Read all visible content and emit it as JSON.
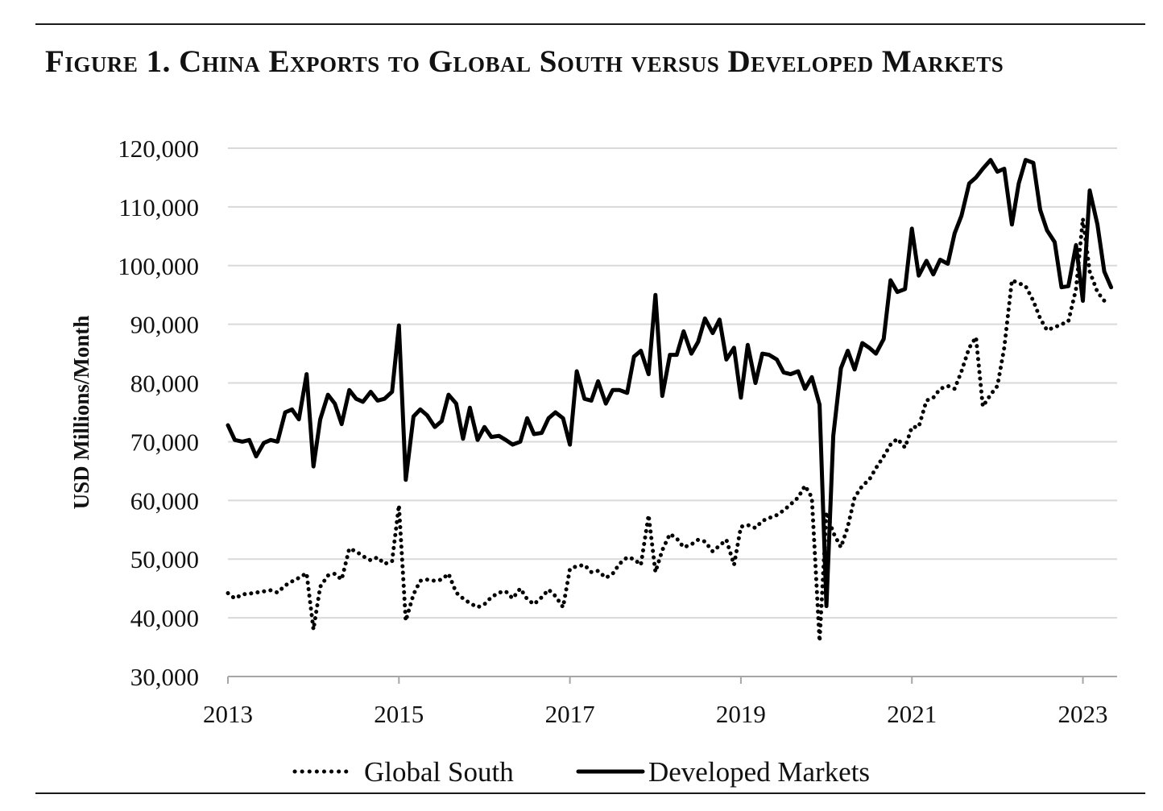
{
  "figure_title": "Figure 1. China Exports to Global South versus Developed Markets",
  "colors": {
    "line": "#000000",
    "grid": "#d9d9d9",
    "text": "#111111"
  },
  "chart_data": {
    "type": "line",
    "title": "Figure 1. China Exports to Global South versus Developed Markets",
    "xlabel": "",
    "ylabel": "USD Millions/Month",
    "xlim": [
      2013,
      2023.4
    ],
    "ylim": [
      30000,
      120000
    ],
    "yticks": [
      30000,
      40000,
      50000,
      60000,
      70000,
      80000,
      90000,
      100000,
      110000,
      120000
    ],
    "ytick_labels": [
      "30,000",
      "40,000",
      "50,000",
      "60,000",
      "70,000",
      "80,000",
      "90,000",
      "100,000",
      "110,000",
      "120,000"
    ],
    "xticks": [
      2013,
      2015,
      2017,
      2019,
      2021,
      2023
    ],
    "xtick_labels": [
      "2013",
      "2015",
      "2017",
      "2019",
      "2021",
      "2023"
    ],
    "grid": true,
    "legend_position": "bottom",
    "series": [
      {
        "name": "Global South",
        "style": "dotted",
        "points": [
          [
            2013.0,
            44200
          ],
          [
            2013.08,
            43300
          ],
          [
            2013.17,
            44000
          ],
          [
            2013.25,
            44100
          ],
          [
            2013.33,
            44300
          ],
          [
            2013.42,
            44500
          ],
          [
            2013.5,
            44700
          ],
          [
            2013.58,
            44300
          ],
          [
            2013.67,
            45500
          ],
          [
            2013.75,
            46200
          ],
          [
            2013.83,
            46800
          ],
          [
            2013.92,
            47600
          ],
          [
            2014.0,
            38000
          ],
          [
            2014.08,
            45300
          ],
          [
            2014.17,
            47200
          ],
          [
            2014.25,
            47500
          ],
          [
            2014.33,
            46500
          ],
          [
            2014.42,
            51800
          ],
          [
            2014.5,
            51300
          ],
          [
            2014.58,
            50500
          ],
          [
            2014.67,
            49800
          ],
          [
            2014.75,
            50300
          ],
          [
            2014.83,
            49200
          ],
          [
            2014.92,
            49600
          ],
          [
            2015.0,
            59200
          ],
          [
            2015.08,
            39500
          ],
          [
            2015.17,
            44000
          ],
          [
            2015.25,
            46300
          ],
          [
            2015.33,
            46500
          ],
          [
            2015.42,
            46300
          ],
          [
            2015.5,
            46500
          ],
          [
            2015.58,
            47500
          ],
          [
            2015.67,
            44300
          ],
          [
            2015.75,
            43300
          ],
          [
            2015.83,
            42500
          ],
          [
            2015.92,
            41800
          ],
          [
            2016.0,
            42300
          ],
          [
            2016.08,
            43500
          ],
          [
            2016.17,
            44300
          ],
          [
            2016.25,
            44500
          ],
          [
            2016.33,
            43300
          ],
          [
            2016.42,
            45000
          ],
          [
            2016.5,
            43200
          ],
          [
            2016.58,
            42300
          ],
          [
            2016.67,
            43500
          ],
          [
            2016.75,
            44800
          ],
          [
            2016.83,
            43700
          ],
          [
            2016.92,
            41800
          ],
          [
            2017.0,
            48300
          ],
          [
            2017.08,
            48800
          ],
          [
            2017.17,
            49000
          ],
          [
            2017.25,
            47800
          ],
          [
            2017.33,
            48000
          ],
          [
            2017.42,
            46800
          ],
          [
            2017.5,
            47500
          ],
          [
            2017.58,
            49200
          ],
          [
            2017.67,
            50300
          ],
          [
            2017.75,
            50000
          ],
          [
            2017.83,
            49000
          ],
          [
            2017.92,
            57500
          ],
          [
            2018.0,
            47800
          ],
          [
            2018.08,
            51500
          ],
          [
            2018.17,
            54300
          ],
          [
            2018.25,
            53500
          ],
          [
            2018.33,
            52000
          ],
          [
            2018.42,
            52500
          ],
          [
            2018.5,
            53300
          ],
          [
            2018.58,
            53000
          ],
          [
            2018.67,
            51300
          ],
          [
            2018.75,
            52300
          ],
          [
            2018.83,
            53300
          ],
          [
            2018.92,
            49000
          ],
          [
            2019.0,
            55500
          ],
          [
            2019.08,
            55800
          ],
          [
            2019.17,
            55300
          ],
          [
            2019.25,
            56500
          ],
          [
            2019.33,
            57000
          ],
          [
            2019.42,
            57500
          ],
          [
            2019.5,
            58300
          ],
          [
            2019.58,
            59300
          ],
          [
            2019.67,
            60500
          ],
          [
            2019.75,
            62500
          ],
          [
            2019.83,
            60500
          ],
          [
            2019.92,
            36000
          ],
          [
            2020.0,
            58000
          ],
          [
            2020.08,
            54500
          ],
          [
            2020.17,
            52000
          ],
          [
            2020.25,
            55500
          ],
          [
            2020.33,
            60500
          ],
          [
            2020.42,
            62500
          ],
          [
            2020.5,
            63500
          ],
          [
            2020.58,
            65500
          ],
          [
            2020.67,
            67500
          ],
          [
            2020.75,
            69500
          ],
          [
            2020.83,
            70500
          ],
          [
            2020.92,
            69000
          ],
          [
            2021.0,
            72500
          ],
          [
            2021.08,
            72500
          ],
          [
            2021.17,
            77000
          ],
          [
            2021.25,
            77500
          ],
          [
            2021.33,
            79000
          ],
          [
            2021.42,
            79500
          ],
          [
            2021.5,
            79000
          ],
          [
            2021.58,
            82000
          ],
          [
            2021.67,
            86000
          ],
          [
            2021.75,
            87800
          ],
          [
            2021.83,
            76000
          ],
          [
            2021.92,
            78000
          ],
          [
            2022.0,
            79500
          ],
          [
            2022.08,
            86000
          ],
          [
            2022.17,
            97500
          ],
          [
            2022.25,
            97000
          ],
          [
            2022.33,
            96500
          ],
          [
            2022.42,
            94000
          ],
          [
            2022.5,
            91000
          ],
          [
            2022.58,
            89000
          ],
          [
            2022.67,
            89500
          ],
          [
            2022.75,
            90000
          ],
          [
            2022.83,
            90500
          ],
          [
            2022.92,
            96000
          ],
          [
            2023.0,
            108000
          ],
          [
            2023.08,
            99000
          ],
          [
            2023.17,
            95500
          ],
          [
            2023.25,
            94000
          ]
        ]
      },
      {
        "name": "Developed Markets",
        "style": "solid",
        "points": [
          [
            2013.0,
            72800
          ],
          [
            2013.08,
            70300
          ],
          [
            2013.17,
            70000
          ],
          [
            2013.25,
            70300
          ],
          [
            2013.33,
            67500
          ],
          [
            2013.42,
            69800
          ],
          [
            2013.5,
            70300
          ],
          [
            2013.58,
            70000
          ],
          [
            2013.67,
            75000
          ],
          [
            2013.75,
            75500
          ],
          [
            2013.83,
            73800
          ],
          [
            2013.92,
            81500
          ],
          [
            2014.0,
            65800
          ],
          [
            2014.08,
            73800
          ],
          [
            2014.17,
            78000
          ],
          [
            2014.25,
            76500
          ],
          [
            2014.33,
            73000
          ],
          [
            2014.42,
            78800
          ],
          [
            2014.5,
            77300
          ],
          [
            2014.58,
            76800
          ],
          [
            2014.67,
            78500
          ],
          [
            2014.75,
            77000
          ],
          [
            2014.83,
            77300
          ],
          [
            2014.92,
            78500
          ],
          [
            2015.0,
            89800
          ],
          [
            2015.08,
            63500
          ],
          [
            2015.17,
            74300
          ],
          [
            2015.25,
            75500
          ],
          [
            2015.33,
            74500
          ],
          [
            2015.42,
            72500
          ],
          [
            2015.5,
            73500
          ],
          [
            2015.58,
            78000
          ],
          [
            2015.67,
            76500
          ],
          [
            2015.75,
            70500
          ],
          [
            2015.83,
            75800
          ],
          [
            2015.92,
            70300
          ],
          [
            2016.0,
            72500
          ],
          [
            2016.08,
            70800
          ],
          [
            2016.17,
            71000
          ],
          [
            2016.25,
            70300
          ],
          [
            2016.33,
            69500
          ],
          [
            2016.42,
            70000
          ],
          [
            2016.5,
            74000
          ],
          [
            2016.58,
            71300
          ],
          [
            2016.67,
            71500
          ],
          [
            2016.75,
            74000
          ],
          [
            2016.83,
            75000
          ],
          [
            2016.92,
            74000
          ],
          [
            2017.0,
            69500
          ],
          [
            2017.08,
            82000
          ],
          [
            2017.17,
            77300
          ],
          [
            2017.25,
            77000
          ],
          [
            2017.33,
            80300
          ],
          [
            2017.42,
            76500
          ],
          [
            2017.5,
            78800
          ],
          [
            2017.58,
            78800
          ],
          [
            2017.67,
            78300
          ],
          [
            2017.75,
            84500
          ],
          [
            2017.83,
            85500
          ],
          [
            2017.92,
            81500
          ],
          [
            2018.0,
            95000
          ],
          [
            2018.08,
            77800
          ],
          [
            2018.17,
            84800
          ],
          [
            2018.25,
            84800
          ],
          [
            2018.33,
            88800
          ],
          [
            2018.42,
            85000
          ],
          [
            2018.5,
            87000
          ],
          [
            2018.58,
            91000
          ],
          [
            2018.67,
            88500
          ],
          [
            2018.75,
            90800
          ],
          [
            2018.83,
            84000
          ],
          [
            2018.92,
            86000
          ],
          [
            2019.0,
            77500
          ],
          [
            2019.08,
            86500
          ],
          [
            2019.17,
            80000
          ],
          [
            2019.25,
            85000
          ],
          [
            2019.33,
            84800
          ],
          [
            2019.42,
            84000
          ],
          [
            2019.5,
            81800
          ],
          [
            2019.58,
            81500
          ],
          [
            2019.67,
            82000
          ],
          [
            2019.75,
            79000
          ],
          [
            2019.83,
            81000
          ],
          [
            2019.92,
            76300
          ],
          [
            2020.0,
            42000
          ],
          [
            2020.08,
            71000
          ],
          [
            2020.17,
            82500
          ],
          [
            2020.25,
            85500
          ],
          [
            2020.33,
            82300
          ],
          [
            2020.42,
            86800
          ],
          [
            2020.5,
            86000
          ],
          [
            2020.58,
            85000
          ],
          [
            2020.67,
            87500
          ],
          [
            2020.75,
            97500
          ],
          [
            2020.83,
            95500
          ],
          [
            2020.92,
            96000
          ],
          [
            2021.0,
            106300
          ],
          [
            2021.08,
            98300
          ],
          [
            2021.17,
            100800
          ],
          [
            2021.25,
            98500
          ],
          [
            2021.33,
            101000
          ],
          [
            2021.42,
            100300
          ],
          [
            2021.5,
            105500
          ],
          [
            2021.58,
            108500
          ],
          [
            2021.67,
            114000
          ],
          [
            2021.75,
            115000
          ],
          [
            2021.83,
            116500
          ],
          [
            2021.92,
            118000
          ],
          [
            2022.0,
            116000
          ],
          [
            2022.08,
            116500
          ],
          [
            2022.17,
            107000
          ],
          [
            2022.25,
            114000
          ],
          [
            2022.33,
            118000
          ],
          [
            2022.42,
            117500
          ],
          [
            2022.5,
            109500
          ],
          [
            2022.58,
            106000
          ],
          [
            2022.67,
            104000
          ],
          [
            2022.75,
            96300
          ],
          [
            2022.83,
            96500
          ],
          [
            2022.92,
            103500
          ],
          [
            2023.0,
            94000
          ],
          [
            2023.08,
            112800
          ],
          [
            2023.17,
            107000
          ],
          [
            2023.25,
            99000
          ],
          [
            2023.33,
            96300
          ]
        ]
      }
    ]
  }
}
